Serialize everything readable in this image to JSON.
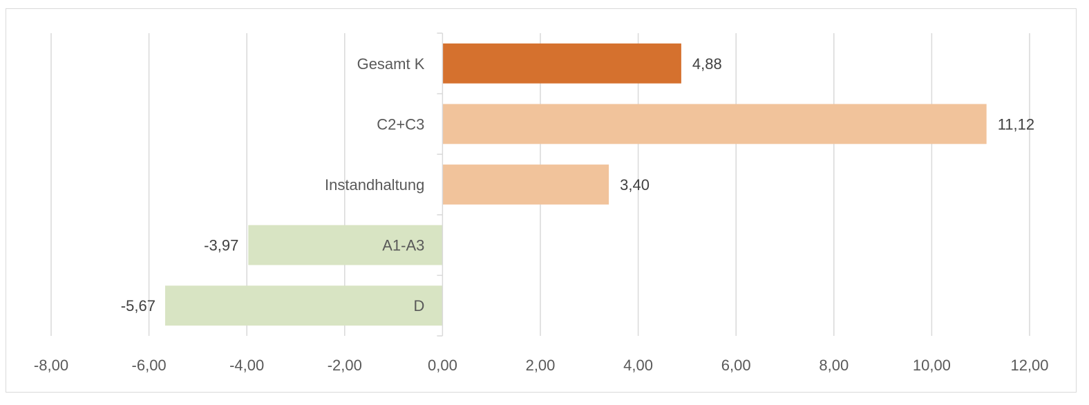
{
  "chart_data": {
    "type": "bar",
    "orientation": "horizontal",
    "categories": [
      "Gesamt K",
      "C2+C3",
      "Instandhaltung",
      "A1-A3",
      "D"
    ],
    "values": [
      4.88,
      11.12,
      3.4,
      -3.97,
      -5.67
    ],
    "data_labels": [
      "4,88",
      "11,12",
      "3,40",
      "-3,97",
      "-5,67"
    ],
    "colors": [
      "#d5712e",
      "#f1c39b",
      "#f1c39b",
      "#d8e4c3",
      "#d8e4c3"
    ],
    "xlim": [
      -8,
      12
    ],
    "xticks": [
      -8,
      -6,
      -4,
      -2,
      0,
      2,
      4,
      6,
      8,
      10,
      12
    ],
    "xtick_labels": [
      "-8,00",
      "-6,00",
      "-4,00",
      "-2,00",
      "0,00",
      "2,00",
      "4,00",
      "6,00",
      "8,00",
      "10,00",
      "12,00"
    ],
    "title": "",
    "xlabel": "",
    "ylabel": "",
    "grid": "vertical",
    "legend": "none"
  }
}
